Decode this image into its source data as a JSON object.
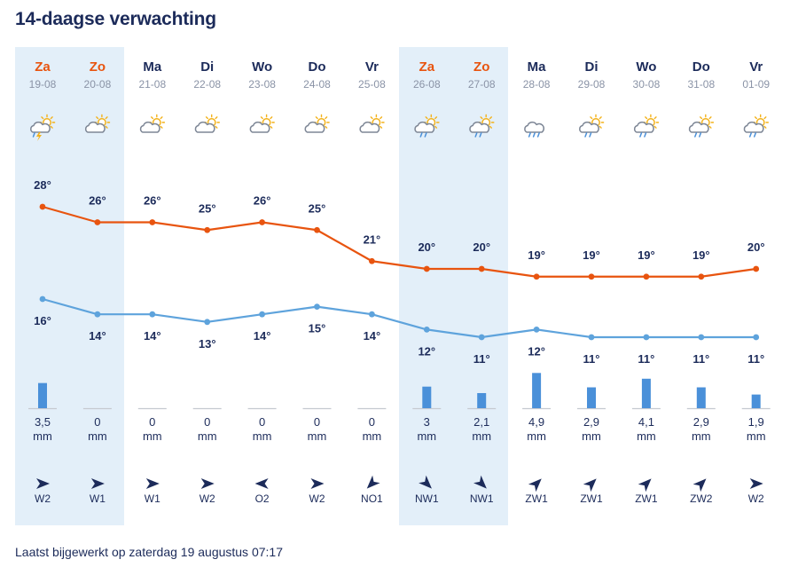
{
  "page": {
    "title": "14-daagse verwachting",
    "footer": "Laatst bijgewerkt op zaterdag 19 augustus 07:17"
  },
  "colors": {
    "max_line": "#e8540f",
    "min_line": "#5ea3dc",
    "weekend_band": "#e3eff9",
    "weekend_day": "#e8540f",
    "weekday_day": "#1c2b5a",
    "date": "#8a93a6",
    "rain_bar": "#4a90d9",
    "arrow": "#1c2b5a"
  },
  "precip_unit": "mm",
  "days": [
    {
      "day": "Za",
      "date": "19-08",
      "weekend": true,
      "icon": "thunder-sun-icon",
      "max": 28,
      "min": 16,
      "max_label": "28°",
      "min_label": "16°",
      "rain": 3.5,
      "rain_label": "3,5",
      "wind": "W2",
      "wind_from": "W"
    },
    {
      "day": "Zo",
      "date": "20-08",
      "weekend": true,
      "icon": "partly-cloudy-icon",
      "max": 26,
      "min": 14,
      "max_label": "26°",
      "min_label": "14°",
      "rain": 0,
      "rain_label": "0",
      "wind": "W1",
      "wind_from": "W"
    },
    {
      "day": "Ma",
      "date": "21-08",
      "weekend": false,
      "icon": "partly-cloudy-icon",
      "max": 26,
      "min": 14,
      "max_label": "26°",
      "min_label": "14°",
      "rain": 0,
      "rain_label": "0",
      "wind": "W1",
      "wind_from": "W"
    },
    {
      "day": "Di",
      "date": "22-08",
      "weekend": false,
      "icon": "partly-cloudy-icon",
      "max": 25,
      "min": 13,
      "max_label": "25°",
      "min_label": "13°",
      "rain": 0,
      "rain_label": "0",
      "wind": "W2",
      "wind_from": "W"
    },
    {
      "day": "Wo",
      "date": "23-08",
      "weekend": false,
      "icon": "partly-cloudy-icon",
      "max": 26,
      "min": 14,
      "max_label": "26°",
      "min_label": "14°",
      "rain": 0,
      "rain_label": "0",
      "wind": "O2",
      "wind_from": "O"
    },
    {
      "day": "Do",
      "date": "24-08",
      "weekend": false,
      "icon": "partly-cloudy-icon",
      "max": 25,
      "min": 15,
      "max_label": "25°",
      "min_label": "15°",
      "rain": 0,
      "rain_label": "0",
      "wind": "W2",
      "wind_from": "W"
    },
    {
      "day": "Vr",
      "date": "25-08",
      "weekend": false,
      "icon": "partly-cloudy-icon",
      "max": 21,
      "min": 14,
      "max_label": "21°",
      "min_label": "14°",
      "rain": 0,
      "rain_label": "0",
      "wind": "NO1",
      "wind_from": "NO"
    },
    {
      "day": "Za",
      "date": "26-08",
      "weekend": true,
      "icon": "sun-shower-icon",
      "max": 20,
      "min": 12,
      "max_label": "20°",
      "min_label": "12°",
      "rain": 3,
      "rain_label": "3",
      "wind": "NW1",
      "wind_from": "NW"
    },
    {
      "day": "Zo",
      "date": "27-08",
      "weekend": true,
      "icon": "sun-shower-icon",
      "max": 20,
      "min": 11,
      "max_label": "20°",
      "min_label": "11°",
      "rain": 2.1,
      "rain_label": "2,1",
      "wind": "NW1",
      "wind_from": "NW"
    },
    {
      "day": "Ma",
      "date": "28-08",
      "weekend": false,
      "icon": "heavy-rain-icon",
      "max": 19,
      "min": 12,
      "max_label": "19°",
      "min_label": "12°",
      "rain": 4.9,
      "rain_label": "4,9",
      "wind": "ZW1",
      "wind_from": "ZW"
    },
    {
      "day": "Di",
      "date": "29-08",
      "weekend": false,
      "icon": "sun-shower-icon",
      "max": 19,
      "min": 11,
      "max_label": "19°",
      "min_label": "11°",
      "rain": 2.9,
      "rain_label": "2,9",
      "wind": "ZW1",
      "wind_from": "ZW"
    },
    {
      "day": "Wo",
      "date": "30-08",
      "weekend": false,
      "icon": "sun-shower-icon",
      "max": 19,
      "min": 11,
      "max_label": "19°",
      "min_label": "11°",
      "rain": 4.1,
      "rain_label": "4,1",
      "wind": "ZW1",
      "wind_from": "ZW"
    },
    {
      "day": "Do",
      "date": "31-08",
      "weekend": false,
      "icon": "sun-shower-icon",
      "max": 19,
      "min": 11,
      "max_label": "19°",
      "min_label": "11°",
      "rain": 2.9,
      "rain_label": "2,9",
      "wind": "ZW2",
      "wind_from": "ZW"
    },
    {
      "day": "Vr",
      "date": "01-09",
      "weekend": false,
      "icon": "sun-shower-icon",
      "max": 20,
      "min": 11,
      "max_label": "20°",
      "min_label": "11°",
      "rain": 1.9,
      "rain_label": "1,9",
      "wind": "W2",
      "wind_from": "W"
    }
  ],
  "chart_data": {
    "type": "line",
    "categories": [
      "19-08",
      "20-08",
      "21-08",
      "22-08",
      "23-08",
      "24-08",
      "25-08",
      "26-08",
      "27-08",
      "28-08",
      "29-08",
      "30-08",
      "31-08",
      "01-09"
    ],
    "series": [
      {
        "values": [
          28,
          26,
          26,
          25,
          26,
          25,
          21,
          20,
          20,
          19,
          19,
          19,
          19,
          20
        ]
      },
      {
        "values": [
          16,
          14,
          14,
          13,
          14,
          15,
          14,
          12,
          11,
          12,
          11,
          11,
          11,
          11
        ]
      }
    ],
    "precipitation_mm": [
      3.5,
      0,
      0,
      0,
      0,
      0,
      0,
      3,
      2.1,
      4.9,
      2.9,
      4.1,
      2.9,
      1.9
    ],
    "grid": false
  }
}
